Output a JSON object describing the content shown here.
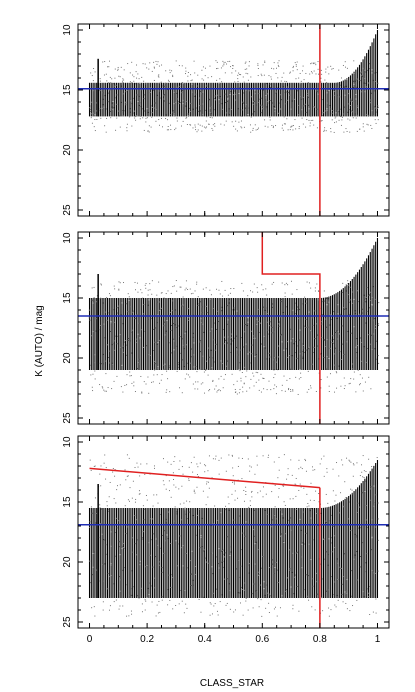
{
  "figure": {
    "ylabel": "K (AUTO) / mag",
    "xlabel": "CLASS_STAR"
  },
  "colors": {
    "points": "#000000",
    "cut_line": "#e02020",
    "limit_line": "#1f2db5",
    "axes": "#000000"
  },
  "chart_data": [
    {
      "type": "scatter",
      "panel": "top",
      "xlim": [
        -0.04,
        1.04
      ],
      "ylim": [
        25.5,
        9.5
      ],
      "y_inverted": true,
      "yticks": [
        10,
        15,
        20,
        25
      ],
      "xticks": [
        0,
        0.2,
        0.4,
        0.6,
        0.8,
        1
      ],
      "show_xticklabels": false,
      "density": {
        "dense_bottom": 17.2,
        "dense_top_base": 14.4,
        "sparse_top": 12.5,
        "sparse_bottom": 18.5,
        "bright_rise_start": 0.85,
        "bright_limit_at_1": 10.0
      },
      "magnitude_limit": 14.9,
      "cut_lines": [
        {
          "x": [
            0.8,
            0.8
          ],
          "y": [
            9.5,
            25.5
          ]
        }
      ]
    },
    {
      "type": "scatter",
      "panel": "middle",
      "xlim": [
        -0.04,
        1.04
      ],
      "ylim": [
        25.5,
        9.5
      ],
      "y_inverted": true,
      "yticks": [
        10,
        15,
        20,
        25
      ],
      "xticks": [
        0,
        0.2,
        0.4,
        0.6,
        0.8,
        1
      ],
      "show_xticklabels": false,
      "density": {
        "dense_bottom": 21.0,
        "dense_top_base": 15.0,
        "sparse_top": 13.5,
        "sparse_bottom": 23.0,
        "bright_rise_start": 0.8,
        "bright_limit_at_1": 10.0
      },
      "magnitude_limit": 16.5,
      "cut_lines": [
        {
          "x": [
            0.6,
            0.6,
            0.8,
            0.8
          ],
          "y": [
            9.5,
            13.0,
            13.0,
            25.5
          ]
        }
      ]
    },
    {
      "type": "scatter",
      "panel": "bottom",
      "xlim": [
        -0.04,
        1.04
      ],
      "ylim": [
        25.5,
        9.5
      ],
      "y_inverted": true,
      "yticks": [
        10,
        15,
        20,
        25
      ],
      "xticks": [
        0,
        0.2,
        0.4,
        0.6,
        0.8,
        1
      ],
      "xticklabels": [
        "0",
        "0.2",
        "0.4",
        "0.6",
        "0.8",
        "1"
      ],
      "show_xticklabels": true,
      "density": {
        "dense_bottom": 23.0,
        "dense_top_base": 15.5,
        "sparse_top": 11.0,
        "sparse_bottom": 24.5,
        "bright_rise_start": 0.8,
        "bright_limit_at_1": 11.5
      },
      "magnitude_limit": 16.9,
      "cut_lines": [
        {
          "x": [
            0.0,
            0.8
          ],
          "y": [
            12.2,
            13.8
          ]
        },
        {
          "x": [
            0.8,
            0.8
          ],
          "y": [
            13.8,
            25.5
          ]
        }
      ]
    }
  ]
}
